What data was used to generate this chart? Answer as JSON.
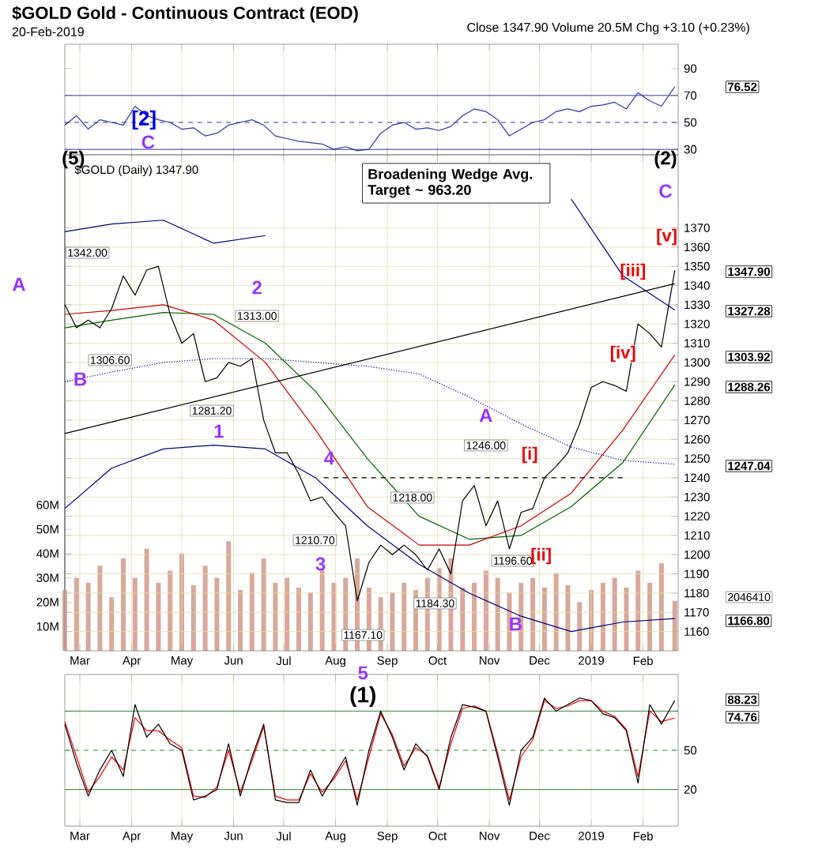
{
  "chart_data": [
    {
      "type": "line",
      "title": "$GOLD Gold - Continuous Contract (EOD)",
      "subtitle": "20-Feb-2019",
      "x": [
        "2018-02-20",
        "2018-02-27",
        "2018-03-06",
        "2018-03-13",
        "2018-03-20",
        "2018-03-27",
        "2018-04-03",
        "2018-04-10",
        "2018-04-17",
        "2018-04-24",
        "2018-05-01",
        "2018-05-08",
        "2018-05-15",
        "2018-05-22",
        "2018-05-29",
        "2018-06-05",
        "2018-06-12",
        "2018-06-19",
        "2018-06-26",
        "2018-07-03",
        "2018-07-10",
        "2018-07-17",
        "2018-07-24",
        "2018-07-31",
        "2018-08-07",
        "2018-08-14",
        "2018-08-21",
        "2018-08-28",
        "2018-09-04",
        "2018-09-11",
        "2018-09-18",
        "2018-09-25",
        "2018-10-02",
        "2018-10-09",
        "2018-10-16",
        "2018-10-23",
        "2018-10-30",
        "2018-11-06",
        "2018-11-13",
        "2018-11-20",
        "2018-11-27",
        "2018-12-04",
        "2018-12-11",
        "2018-12-18",
        "2018-12-25",
        "2019-01-01",
        "2019-01-08",
        "2019-01-15",
        "2019-01-22",
        "2019-01-29",
        "2019-02-05",
        "2019-02-12",
        "2019-02-20"
      ],
      "series": [
        {
          "color": "#3333aa",
          "values": [
            48,
            55,
            45,
            52,
            50,
            48,
            62,
            55,
            52,
            50,
            45,
            46,
            40,
            42,
            48,
            50,
            52,
            48,
            40,
            38,
            36,
            35,
            34,
            30,
            32,
            29,
            30,
            42,
            48,
            50,
            45,
            46,
            44,
            47,
            55,
            60,
            58,
            52,
            40,
            45,
            50,
            52,
            58,
            60,
            58,
            62,
            63,
            65,
            60,
            72,
            66,
            62,
            76.52
          ]
        }
      ],
      "xlim": [
        "2018-02-20",
        "2019-02-22"
      ],
      "xticks": [
        "2018-03-01",
        "2018-04-01",
        "2018-05-01",
        "2018-06-01",
        "2018-07-01",
        "2018-08-01",
        "2018-09-01",
        "2018-10-01",
        "2018-11-01",
        "2018-12-01",
        "2019-01-01",
        "2019-02-01"
      ],
      "ylim": [
        26,
        108
      ],
      "yticks": [
        30,
        50,
        70,
        90
      ],
      "grid": "x",
      "tick_labels": "y",
      "ref_lines": [
        {
          "axis": "y",
          "value": 70,
          "color": "#000080",
          "line_style": "solid"
        },
        {
          "axis": "y",
          "value": 50,
          "color": "#000080",
          "line_style": "dashed"
        },
        {
          "axis": "y",
          "value": 30,
          "color": "#000080",
          "line_style": "solid"
        }
      ],
      "annotations": [
        "Close 1347.90 Volume 20.5M Chg +3.10 (+0.23%)",
        "[2]",
        "76.52"
      ]
    },
    {
      "type": "line",
      "x": [
        "2018-02-20",
        "2018-02-27",
        "2018-03-06",
        "2018-03-13",
        "2018-03-20",
        "2018-03-27",
        "2018-04-03",
        "2018-04-10",
        "2018-04-17",
        "2018-04-24",
        "2018-05-01",
        "2018-05-08",
        "2018-05-15",
        "2018-05-22",
        "2018-05-29",
        "2018-06-05",
        "2018-06-12",
        "2018-06-19",
        "2018-06-26",
        "2018-07-03",
        "2018-07-10",
        "2018-07-17",
        "2018-07-24",
        "2018-07-31",
        "2018-08-07",
        "2018-08-14",
        "2018-08-21",
        "2018-08-28",
        "2018-09-04",
        "2018-09-11",
        "2018-09-18",
        "2018-09-25",
        "2018-10-02",
        "2018-10-09",
        "2018-10-16",
        "2018-10-23",
        "2018-10-30",
        "2018-11-06",
        "2018-11-13",
        "2018-11-20",
        "2018-11-27",
        "2018-12-04",
        "2018-12-11",
        "2018-12-18",
        "2018-12-25",
        "2019-01-01",
        "2019-01-08",
        "2019-01-15",
        "2019-01-22",
        "2019-01-29",
        "2019-02-05",
        "2019-02-12",
        "2019-02-20"
      ],
      "series": [
        {
          "type": "bar",
          "axis": "y2",
          "color": "#d8a898",
          "values": [
            25,
            30,
            28,
            35,
            22,
            38,
            30,
            42,
            28,
            33,
            40,
            27,
            35,
            30,
            45,
            25,
            32,
            38,
            28,
            30,
            26,
            24,
            33,
            28,
            30,
            38,
            26,
            22,
            24,
            28,
            25,
            30,
            34,
            38,
            26,
            28,
            33,
            30,
            24,
            28,
            30,
            26,
            32,
            27,
            20,
            25,
            28,
            30,
            26,
            33,
            28,
            36,
            20.5
          ]
        },
        {
          "color": "#000080",
          "x": [
            "2018-02-20",
            "2018-03-20",
            "2018-04-20",
            "2018-05-20",
            "2018-06-20",
            "2018-07-20",
            "2018-08-20",
            "2018-09-20",
            "2018-10-20",
            "2018-11-20",
            "2018-12-20",
            "2019-01-20",
            "2019-02-20"
          ],
          "values": [
            1368,
            1372,
            1374,
            1362,
            1366,
            null,
            null,
            null,
            null,
            null,
            1385,
            1345,
            1327.28
          ]
        },
        {
          "color": "#000080",
          "x": [
            "2018-02-20",
            "2018-03-20",
            "2018-04-20",
            "2018-05-20",
            "2018-06-20",
            "2018-07-20",
            "2018-08-20",
            "2018-09-20",
            "2018-10-20",
            "2018-11-20",
            "2018-12-20",
            "2019-01-20",
            "2019-02-20"
          ],
          "values": [
            1224,
            1245,
            1255,
            1257,
            1255,
            1240,
            1215,
            1195,
            1180,
            1168,
            1160,
            1165,
            1166.8
          ]
        },
        {
          "color": "#000080",
          "line_style": "dotted",
          "x": [
            "2018-02-20",
            "2018-03-20",
            "2018-04-20",
            "2018-05-20",
            "2018-06-20",
            "2018-07-20",
            "2018-08-20",
            "2018-09-20",
            "2018-10-20",
            "2018-11-20",
            "2018-12-20",
            "2019-01-20",
            "2019-02-20"
          ],
          "values": [
            1290,
            1295,
            1300,
            1302,
            1302,
            1300,
            1298,
            1294,
            1282,
            1268,
            1256,
            1249,
            1247.04
          ]
        },
        {
          "color": "#006600",
          "x": [
            "2018-02-20",
            "2018-03-20",
            "2018-04-20",
            "2018-05-20",
            "2018-06-20",
            "2018-07-20",
            "2018-08-20",
            "2018-09-20",
            "2018-10-20",
            "2018-11-20",
            "2018-12-20",
            "2019-01-20",
            "2019-02-20"
          ],
          "values": [
            1318,
            1322,
            1326,
            1325,
            1310,
            1285,
            1250,
            1220,
            1208,
            1210,
            1225,
            1248,
            1288.26
          ]
        },
        {
          "color": "#cc0000",
          "x": [
            "2018-02-20",
            "2018-03-20",
            "2018-04-20",
            "2018-05-20",
            "2018-06-20",
            "2018-07-20",
            "2018-08-20",
            "2018-09-20",
            "2018-10-20",
            "2018-11-20",
            "2018-12-20",
            "2019-01-20",
            "2019-02-20"
          ],
          "values": [
            1325,
            1327,
            1330,
            1322,
            1300,
            1265,
            1225,
            1205,
            1205,
            1215,
            1232,
            1265,
            1303.92
          ]
        },
        {
          "color": "#000000",
          "values": [
            1330,
            1318,
            1322,
            1318,
            1328,
            1345,
            1335,
            1348,
            1350,
            1325,
            1310,
            1315,
            1290,
            1292,
            1300,
            1298,
            1302,
            1270,
            1253,
            1253,
            1242,
            1228,
            1230,
            1222,
            1215,
            1176,
            1196,
            1205,
            1200,
            1205,
            1200,
            1192,
            1203,
            1190,
            1228,
            1236,
            1215,
            1228,
            1203,
            1222,
            1224,
            1240,
            1246,
            1253,
            1268,
            1287,
            1290,
            1288,
            1285,
            1320,
            1315,
            1308,
            1347.9
          ]
        },
        {
          "color": "#000000",
          "line_style": "dashed",
          "x": [
            "2018-07-25",
            "2019-01-20"
          ],
          "values": [
            1240,
            1240
          ]
        },
        {
          "color": "#000000",
          "x": [
            "2018-02-20",
            "2019-02-20"
          ],
          "values": [
            1263,
            1341
          ]
        }
      ],
      "xlim": [
        "2018-02-20",
        "2019-02-22"
      ],
      "xticks": [
        {
          "value": "2018-03-01",
          "label": "Mar"
        },
        {
          "value": "2018-04-01",
          "label": "Apr"
        },
        {
          "value": "2018-05-01",
          "label": "May"
        },
        {
          "value": "2018-06-01",
          "label": "Jun"
        },
        {
          "value": "2018-07-01",
          "label": "Jul"
        },
        {
          "value": "2018-08-01",
          "label": "Aug"
        },
        {
          "value": "2018-09-01",
          "label": "Sep"
        },
        {
          "value": "2018-10-01",
          "label": "Oct"
        },
        {
          "value": "2018-11-01",
          "label": "Nov"
        },
        {
          "value": "2018-12-01",
          "label": "Dec"
        },
        {
          "value": "2019-01-01",
          "label": "2019"
        },
        {
          "value": "2019-02-01",
          "label": "Feb"
        }
      ],
      "ylim": [
        1150,
        1408
      ],
      "yticks": [
        1160,
        1170,
        1180,
        1190,
        1200,
        1210,
        1220,
        1230,
        1240,
        1250,
        1260,
        1270,
        1280,
        1290,
        1300,
        1310,
        1320,
        1330,
        1340,
        1350,
        1360,
        1370
      ],
      "y2lim": [
        0,
        204
      ],
      "y2ticks": [
        {
          "value": 10,
          "label": "10M"
        },
        {
          "value": 20,
          "label": "20M"
        },
        {
          "value": 30,
          "label": "30M"
        },
        {
          "value": 40,
          "label": "40M"
        },
        {
          "value": 50,
          "label": "50M"
        },
        {
          "value": 60,
          "label": "60M"
        }
      ],
      "grid": true,
      "annotations": [
        "$GOLD (Daily) 1347.90",
        "Broadening Wedge Avg. Target ~ 963.20",
        "1342.00",
        "1306.60",
        "1313.00",
        "1281.20",
        "1210.70",
        "1167.10",
        "1218.00",
        "1184.30",
        "1246.00",
        "1196.60",
        "(5)",
        "C",
        "A",
        "B",
        "1",
        "2",
        "3",
        "4",
        "5",
        "A",
        "B",
        "[i]",
        "[ii]",
        "[iii]",
        "[iv]",
        "[v]",
        "C",
        "(2)",
        "2046410",
        "1347.90",
        "1327.28",
        "1303.92",
        "1288.26",
        "1247.04",
        "1166.80"
      ]
    },
    {
      "type": "line",
      "x": [
        "2018-02-20",
        "2018-02-27",
        "2018-03-06",
        "2018-03-13",
        "2018-03-20",
        "2018-03-27",
        "2018-04-03",
        "2018-04-10",
        "2018-04-17",
        "2018-04-24",
        "2018-05-01",
        "2018-05-08",
        "2018-05-15",
        "2018-05-22",
        "2018-05-29",
        "2018-06-05",
        "2018-06-12",
        "2018-06-19",
        "2018-06-26",
        "2018-07-03",
        "2018-07-10",
        "2018-07-17",
        "2018-07-24",
        "2018-07-31",
        "2018-08-07",
        "2018-08-14",
        "2018-08-21",
        "2018-08-28",
        "2018-09-04",
        "2018-09-11",
        "2018-09-18",
        "2018-09-25",
        "2018-10-02",
        "2018-10-09",
        "2018-10-16",
        "2018-10-23",
        "2018-10-30",
        "2018-11-06",
        "2018-11-13",
        "2018-11-20",
        "2018-11-27",
        "2018-12-04",
        "2018-12-11",
        "2018-12-18",
        "2018-12-25",
        "2019-01-01",
        "2019-01-08",
        "2019-01-15",
        "2019-01-22",
        "2019-01-29",
        "2019-02-05",
        "2019-02-12",
        "2019-02-20"
      ],
      "series": [
        {
          "color": "#ff0000",
          "values": [
            72,
            45,
            18,
            30,
            45,
            35,
            75,
            65,
            65,
            58,
            52,
            15,
            14,
            22,
            50,
            18,
            42,
            68,
            15,
            12,
            12,
            32,
            18,
            28,
            42,
            12,
            45,
            78,
            62,
            38,
            52,
            46,
            22,
            55,
            82,
            84,
            80,
            48,
            12,
            45,
            58,
            88,
            82,
            84,
            88,
            88,
            80,
            76,
            66,
            30,
            80,
            72,
            74.76
          ]
        },
        {
          "color": "#000000",
          "values": [
            70,
            40,
            15,
            35,
            50,
            30,
            85,
            60,
            70,
            55,
            50,
            12,
            15,
            20,
            55,
            15,
            45,
            70,
            12,
            10,
            10,
            35,
            15,
            30,
            45,
            8,
            50,
            80,
            60,
            35,
            55,
            45,
            20,
            60,
            85,
            83,
            80,
            45,
            8,
            50,
            60,
            90,
            80,
            85,
            90,
            88,
            78,
            75,
            65,
            25,
            85,
            70,
            88.23
          ]
        }
      ],
      "xlim": [
        "2018-02-20",
        "2019-02-22"
      ],
      "xticks": [
        {
          "value": "2018-03-01",
          "label": "Mar"
        },
        {
          "value": "2018-04-01",
          "label": "Apr"
        },
        {
          "value": "2018-05-01",
          "label": "May"
        },
        {
          "value": "2018-06-01",
          "label": "Jun"
        },
        {
          "value": "2018-07-01",
          "label": "Jul"
        },
        {
          "value": "2018-08-01",
          "label": "Aug"
        },
        {
          "value": "2018-09-01",
          "label": "Sep"
        },
        {
          "value": "2018-10-01",
          "label": "Oct"
        },
        {
          "value": "2018-11-01",
          "label": "Nov"
        },
        {
          "value": "2018-12-01",
          "label": "Dec"
        },
        {
          "value": "2019-01-01",
          "label": "2019"
        },
        {
          "value": "2019-02-01",
          "label": "Feb"
        }
      ],
      "ylim": [
        -8,
        108
      ],
      "yticks": [
        20,
        50,
        {
          "value": 80,
          "label": null
        }
      ],
      "grid": "x",
      "ref_lines": [
        {
          "axis": "y",
          "value": 80,
          "color": "#006600",
          "line_style": "solid"
        },
        {
          "axis": "y",
          "value": 50,
          "color": "#006600",
          "line_style": "dashed"
        },
        {
          "axis": "y",
          "value": 20,
          "color": "#006600",
          "line_style": "solid"
        }
      ],
      "annotations": [
        "(1)",
        "88.23",
        "74.76"
      ]
    }
  ]
}
